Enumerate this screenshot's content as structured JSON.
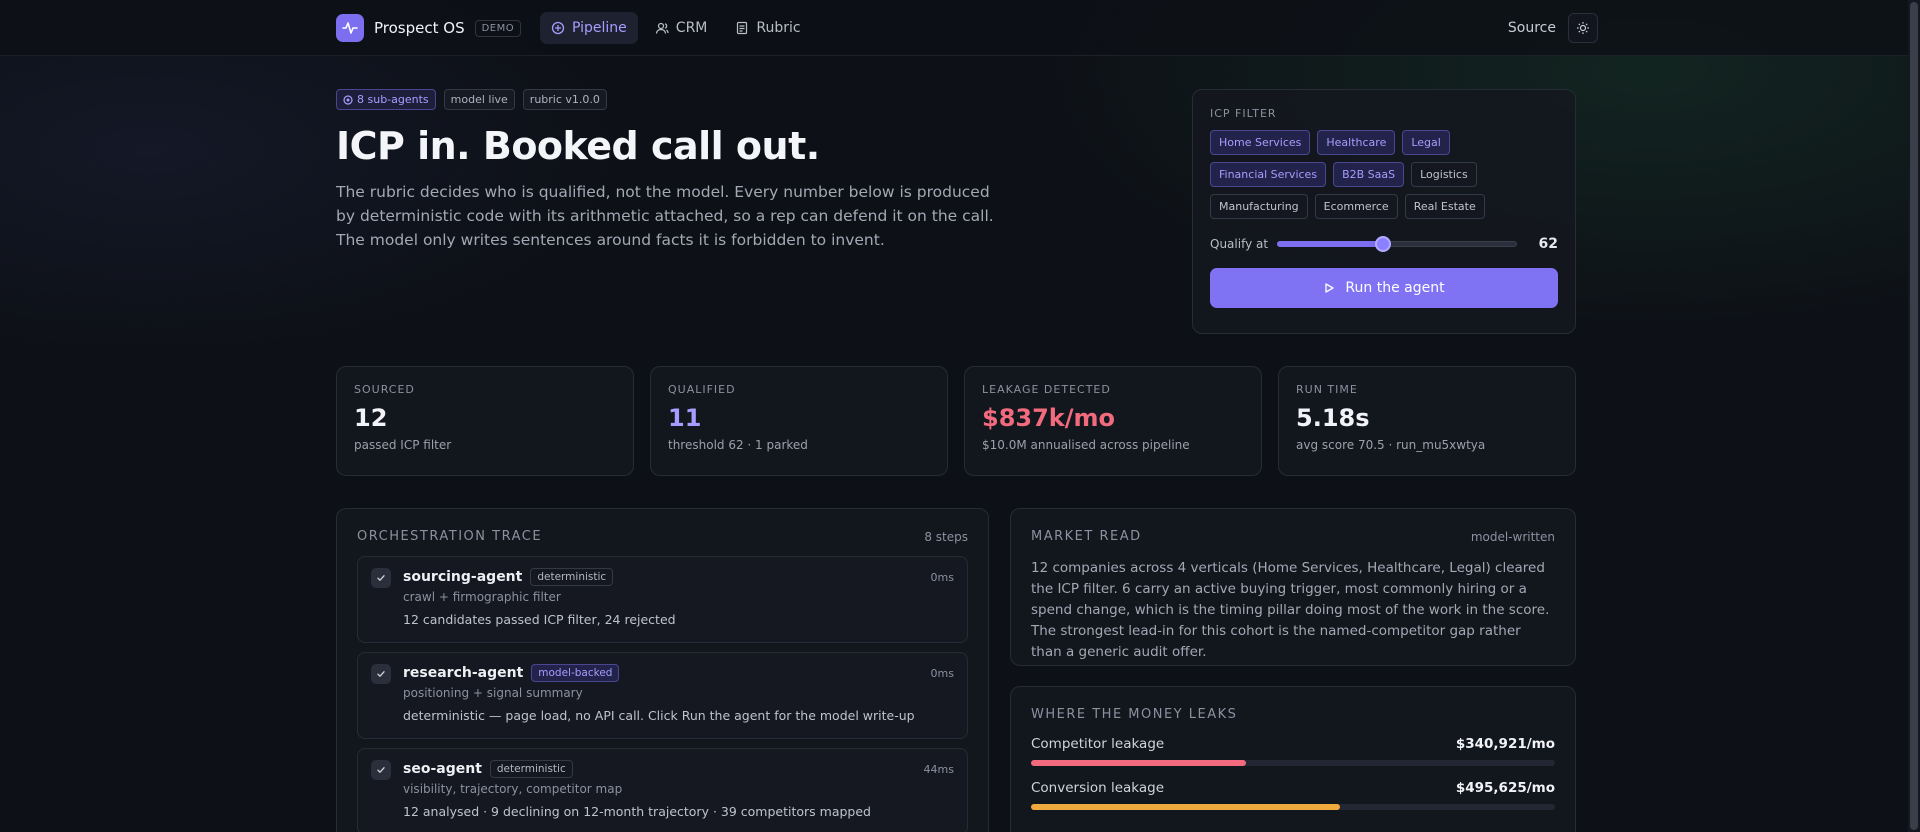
{
  "app": {
    "name": "Prospect OS",
    "badge": "DEMO",
    "accent": "#7b6ff0"
  },
  "nav": [
    {
      "label": "Pipeline",
      "icon": "pipeline-icon",
      "active": true
    },
    {
      "label": "CRM",
      "icon": "users-icon",
      "active": false
    },
    {
      "label": "Rubric",
      "icon": "document-icon",
      "active": false
    }
  ],
  "topright": {
    "source": "Source",
    "theme_icon": "sun-icon"
  },
  "hero": {
    "chips": [
      "8 sub-agents",
      "model live",
      "rubric v1.0.0"
    ],
    "title": "ICP in. Booked call out.",
    "description": "The rubric decides who is qualified, not the model. Every number below is produced by deterministic code with its arithmetic attached, so a rep can defend it on the call. The model only writes sentences around facts it is forbidden to invent."
  },
  "icp_filter": {
    "label": "ICP FILTER",
    "chips": [
      {
        "label": "Home Services",
        "selected": true
      },
      {
        "label": "Healthcare",
        "selected": true
      },
      {
        "label": "Legal",
        "selected": true
      },
      {
        "label": "Financial Services",
        "selected": true
      },
      {
        "label": "B2B SaaS",
        "selected": true
      },
      {
        "label": "Logistics",
        "selected": false
      },
      {
        "label": "Manufacturing",
        "selected": false
      },
      {
        "label": "Ecommerce",
        "selected": false
      },
      {
        "label": "Real Estate",
        "selected": false
      }
    ],
    "qualify_label": "Qualify at",
    "qualify_value": "62",
    "slider_fraction": 0.44,
    "run_label": "Run the agent"
  },
  "stats": [
    {
      "label": "SOURCED",
      "value": "12",
      "sub": "passed ICP filter",
      "tone": ""
    },
    {
      "label": "QUALIFIED",
      "value": "11",
      "sub": "threshold 62 · 1 parked",
      "tone": "purple"
    },
    {
      "label": "LEAKAGE DETECTED",
      "value": "$837k/mo",
      "sub": "$10.0M annualised across pipeline",
      "tone": "red"
    },
    {
      "label": "RUN TIME",
      "value": "5.18s",
      "sub": "avg score 70.5 · run_mu5xwtya",
      "tone": ""
    }
  ],
  "trace": {
    "title": "ORCHESTRATION TRACE",
    "meta": "8 steps",
    "steps": [
      {
        "name": "sourcing-agent",
        "tag": "deterministic",
        "model": false,
        "time": "0ms",
        "desc": "crawl + firmographic filter",
        "result": "12 candidates passed ICP filter, 24 rejected"
      },
      {
        "name": "research-agent",
        "tag": "model-backed",
        "model": true,
        "time": "0ms",
        "desc": "positioning + signal summary",
        "result": "deterministic — page load, no API call. Click Run the agent for the model write-up"
      },
      {
        "name": "seo-agent",
        "tag": "deterministic",
        "model": false,
        "time": "44ms",
        "desc": "visibility, trajectory, competitor map",
        "result": "12 analysed · 9 declining on 12-month trajectory · 39 competitors mapped"
      }
    ]
  },
  "market": {
    "title": "MARKET READ",
    "meta": "model-written",
    "text": "12 companies across 4 verticals (Home Services, Healthcare, Legal) cleared the ICP filter. 6 carry an active buying trigger, most commonly hiring or a spend change, which is the timing pillar doing most of the work in the score. The strongest lead-in for this cohort is the named-competitor gap rather than a generic audit offer."
  },
  "money": {
    "title": "WHERE THE MONEY LEAKS",
    "rows": [
      {
        "label": "Competitor leakage",
        "amount": "$340,921/mo",
        "fraction": 0.41,
        "color": "#f26a7e"
      },
      {
        "label": "Conversion leakage",
        "amount": "$495,625/mo",
        "fraction": 0.59,
        "color": "#f0a93c"
      }
    ]
  }
}
